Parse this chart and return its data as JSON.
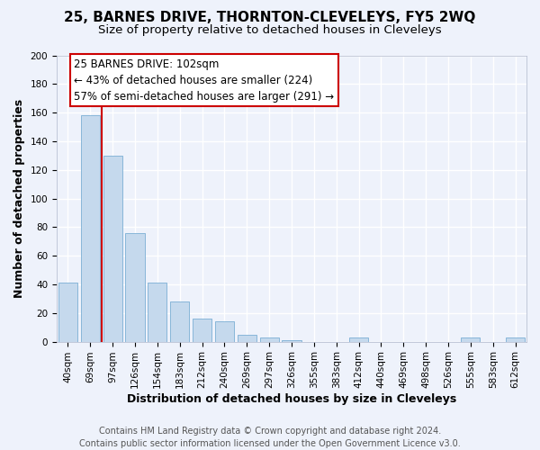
{
  "title": "25, BARNES DRIVE, THORNTON-CLEVELEYS, FY5 2WQ",
  "subtitle": "Size of property relative to detached houses in Cleveleys",
  "xlabel": "Distribution of detached houses by size in Cleveleys",
  "ylabel": "Number of detached properties",
  "categories": [
    "40sqm",
    "69sqm",
    "97sqm",
    "126sqm",
    "154sqm",
    "183sqm",
    "212sqm",
    "240sqm",
    "269sqm",
    "297sqm",
    "326sqm",
    "355sqm",
    "383sqm",
    "412sqm",
    "440sqm",
    "469sqm",
    "498sqm",
    "526sqm",
    "555sqm",
    "583sqm",
    "612sqm"
  ],
  "values": [
    41,
    158,
    130,
    76,
    41,
    28,
    16,
    14,
    5,
    3,
    1,
    0,
    0,
    3,
    0,
    0,
    0,
    0,
    3,
    0,
    3
  ],
  "bar_color": "#c5d9ed",
  "bar_edge_color": "#7bafd4",
  "vline_x_index": 1.5,
  "vline_color": "#cc0000",
  "annotation_line1": "25 BARNES DRIVE: 102sqm",
  "annotation_line2": "← 43% of detached houses are smaller (224)",
  "annotation_line3": "57% of semi-detached houses are larger (291) →",
  "annotation_box_color": "#ffffff",
  "annotation_box_edge": "#cc0000",
  "ylim": [
    0,
    200
  ],
  "yticks": [
    0,
    20,
    40,
    60,
    80,
    100,
    120,
    140,
    160,
    180,
    200
  ],
  "footer_line1": "Contains HM Land Registry data © Crown copyright and database right 2024.",
  "footer_line2": "Contains public sector information licensed under the Open Government Licence v3.0.",
  "bg_color": "#eef2fb",
  "grid_color": "#ffffff",
  "title_fontsize": 11,
  "subtitle_fontsize": 9.5,
  "xlabel_fontsize": 9,
  "ylabel_fontsize": 9,
  "tick_fontsize": 7.5,
  "annotation_fontsize": 8.5,
  "footer_fontsize": 7
}
